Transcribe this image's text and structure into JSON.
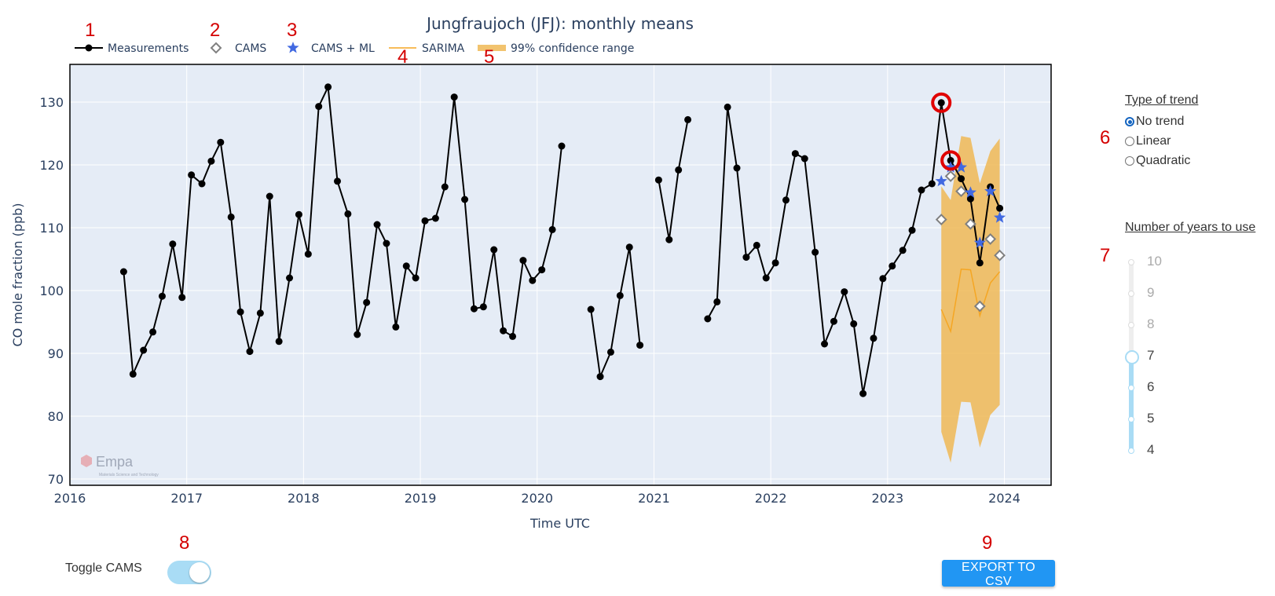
{
  "annotations": [
    "1",
    "2",
    "3",
    "4",
    "5",
    "6",
    "7",
    "8",
    "9"
  ],
  "chart_data": {
    "type": "line",
    "title": "Jungfraujoch (JFJ): monthly means",
    "xlabel": "Time UTC",
    "ylabel": "CO mole fraction (ppb)",
    "xlim": [
      2016.0,
      2024.4
    ],
    "ylim": [
      69,
      136
    ],
    "x_ticks": [
      2016,
      2017,
      2018,
      2019,
      2020,
      2021,
      2022,
      2023,
      2024
    ],
    "y_ticks": [
      70,
      80,
      90,
      100,
      110,
      120,
      130
    ],
    "grid": true,
    "legend": "top",
    "watermark": "Empa",
    "watermark_sub": "Materials Science and Technology",
    "series": [
      {
        "name": "Measurements",
        "color": "#000000",
        "segments": [
          {
            "x": [
              2016.46,
              2016.54,
              2016.63,
              2016.71,
              2016.79,
              2016.88,
              2016.96,
              2017.04,
              2017.13,
              2017.21,
              2017.29,
              2017.38,
              2017.46,
              2017.54,
              2017.63,
              2017.71,
              2017.79,
              2017.88,
              2017.96,
              2018.04,
              2018.13,
              2018.21,
              2018.29,
              2018.38,
              2018.46,
              2018.54,
              2018.63,
              2018.71,
              2018.79,
              2018.88,
              2018.96,
              2019.04,
              2019.13,
              2019.21,
              2019.29,
              2019.38,
              2019.46,
              2019.54,
              2019.63,
              2019.71,
              2019.79,
              2019.88,
              2019.96,
              2020.04,
              2020.13,
              2020.21
            ],
            "y": [
              103.0,
              86.7,
              90.5,
              93.4,
              99.1,
              107.4,
              98.9,
              118.4,
              117.0,
              120.6,
              123.6,
              111.7,
              96.6,
              90.3,
              96.4,
              115.0,
              91.9,
              102.0,
              112.1,
              105.8,
              129.3,
              132.4,
              117.4,
              112.2,
              93.0,
              98.1,
              110.5,
              107.5,
              94.2,
              103.9,
              102.0,
              111.1,
              111.5,
              116.5,
              130.8,
              114.5,
              97.1,
              97.4,
              106.5,
              93.6,
              92.7,
              104.8,
              101.6,
              103.3,
              109.7,
              123.0
            ]
          },
          {
            "x": [
              2020.46,
              2020.54,
              2020.63,
              2020.71,
              2020.79,
              2020.88
            ],
            "y": [
              97.0,
              86.3,
              90.2,
              99.2,
              106.9,
              91.3
            ]
          },
          {
            "x": [
              2021.04,
              2021.13,
              2021.21,
              2021.29
            ],
            "y": [
              117.6,
              108.1,
              119.2,
              127.2
            ]
          },
          {
            "x": [
              2021.46,
              2021.54,
              2021.63,
              2021.71,
              2021.79,
              2021.88,
              2021.96,
              2022.04,
              2022.13,
              2022.21,
              2022.29,
              2022.38,
              2022.46,
              2022.54,
              2022.63,
              2022.71,
              2022.79,
              2022.88,
              2022.96,
              2023.04,
              2023.13,
              2023.21,
              2023.29,
              2023.38,
              2023.46,
              2023.54,
              2023.63,
              2023.71,
              2023.79,
              2023.88,
              2023.96
            ],
            "y": [
              95.5,
              98.2,
              129.2,
              119.5,
              105.3,
              107.2,
              102.0,
              104.4,
              114.4,
              121.8,
              121.0,
              106.1,
              91.5,
              95.1,
              99.8,
              94.7,
              83.6,
              92.4,
              101.9,
              103.9,
              106.4,
              109.6,
              116.0,
              117.0,
              129.9,
              120.7,
              117.8,
              114.6,
              104.4,
              116.5,
              113.1
            ]
          }
        ]
      },
      {
        "name": "CAMS",
        "color": "#808080",
        "x": [
          2023.46,
          2023.54,
          2023.63,
          2023.71,
          2023.79,
          2023.88,
          2023.96
        ],
        "y": [
          111.3,
          118.2,
          115.8,
          110.6,
          97.5,
          108.2,
          105.6
        ]
      },
      {
        "name": "CAMS + ML",
        "color": "#4169e1",
        "x": [
          2023.46,
          2023.54,
          2023.63,
          2023.71,
          2023.79,
          2023.88,
          2023.96
        ],
        "y": [
          117.4,
          119.6,
          119.6,
          115.6,
          107.6,
          115.8,
          111.6
        ]
      },
      {
        "name": "SARIMA",
        "color": "#f5a623",
        "x": [
          2023.46,
          2023.54,
          2023.63,
          2023.71,
          2023.79,
          2023.88,
          2023.96
        ],
        "y": [
          97.0,
          93.5,
          103.4,
          103.3,
          96.0,
          101.2,
          103.0
        ]
      },
      {
        "name": "99% confidence range",
        "color": "#f0b955",
        "x": [
          2023.46,
          2023.54,
          2023.63,
          2023.71,
          2023.79,
          2023.88,
          2023.96
        ],
        "lower": [
          77.5,
          72.6,
          82.3,
          82.2,
          75.0,
          80.2,
          81.8
        ],
        "upper": [
          116.6,
          114.4,
          124.6,
          124.3,
          117.1,
          122.2,
          124.2
        ]
      }
    ],
    "highlighted_points": [
      {
        "x": 2023.46,
        "y": 129.9
      },
      {
        "x": 2023.54,
        "y": 120.7
      }
    ]
  },
  "trend_panel": {
    "title": "Type of trend",
    "options": [
      "No trend",
      "Linear",
      "Quadratic"
    ],
    "selected": "No trend"
  },
  "years_panel": {
    "title": "Number of years to use",
    "values": [
      10,
      9,
      8,
      7,
      6,
      5,
      4
    ],
    "selected": 7
  },
  "toggle": {
    "label": "Toggle CAMS",
    "on": true
  },
  "export_button": {
    "label": "EXPORT TO CSV"
  }
}
